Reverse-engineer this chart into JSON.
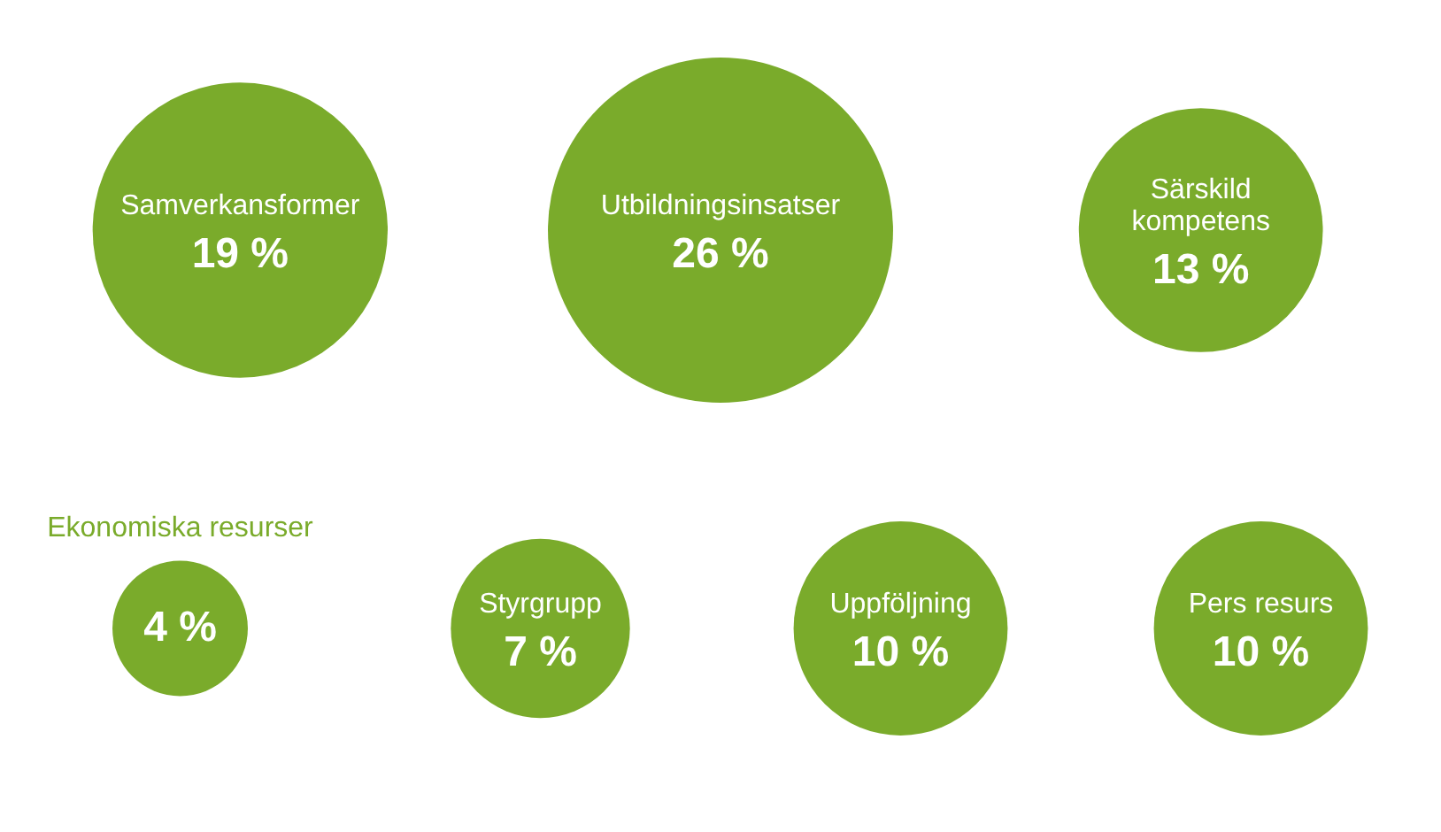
{
  "chart_data": {
    "type": "other",
    "categories": [
      "Samverkansformer",
      "Utbildningsinsatser",
      "Särskild kompetens",
      "Ekonomiska resurser",
      "Styrgrupp",
      "Uppföljning",
      "Pers resurs"
    ],
    "values": [
      19,
      26,
      13,
      4,
      7,
      10,
      10
    ],
    "value_labels": [
      "19 %",
      "26 %",
      "13 %",
      "4 %",
      "7 %",
      "10 %",
      "10 %"
    ],
    "color": "#7aab2b"
  }
}
